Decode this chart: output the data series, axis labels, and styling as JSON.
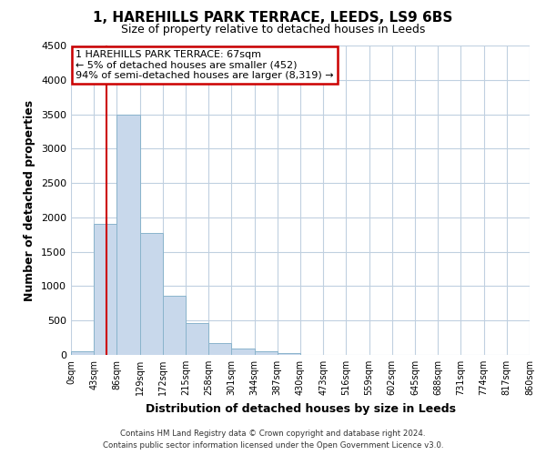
{
  "title": "1, HAREHILLS PARK TERRACE, LEEDS, LS9 6BS",
  "subtitle": "Size of property relative to detached houses in Leeds",
  "xlabel": "Distribution of detached houses by size in Leeds",
  "ylabel": "Number of detached properties",
  "bin_labels": [
    "0sqm",
    "43sqm",
    "86sqm",
    "129sqm",
    "172sqm",
    "215sqm",
    "258sqm",
    "301sqm",
    "344sqm",
    "387sqm",
    "430sqm",
    "473sqm",
    "516sqm",
    "559sqm",
    "602sqm",
    "645sqm",
    "688sqm",
    "731sqm",
    "774sqm",
    "817sqm",
    "860sqm"
  ],
  "bar_values": [
    50,
    1900,
    3500,
    1780,
    860,
    460,
    175,
    90,
    55,
    20,
    5,
    0,
    0,
    0,
    0,
    0,
    0,
    0,
    0,
    0
  ],
  "bar_color": "#c8d8eb",
  "bar_edgecolor": "#8ab4cc",
  "property_line_x": 67,
  "bin_width": 43,
  "ylim": [
    0,
    4500
  ],
  "yticks": [
    0,
    500,
    1000,
    1500,
    2000,
    2500,
    3000,
    3500,
    4000,
    4500
  ],
  "annotation_line1": "1 HAREHILLS PARK TERRACE: 67sqm",
  "annotation_line2": "← 5% of detached houses are smaller (452)",
  "annotation_line3": "94% of semi-detached houses are larger (8,319) →",
  "annotation_box_color": "#ffffff",
  "annotation_box_edgecolor": "#cc0000",
  "vline_color": "#cc0000",
  "footer_line1": "Contains HM Land Registry data © Crown copyright and database right 2024.",
  "footer_line2": "Contains public sector information licensed under the Open Government Licence v3.0.",
  "background_color": "#ffffff",
  "grid_color": "#c0d0e0"
}
